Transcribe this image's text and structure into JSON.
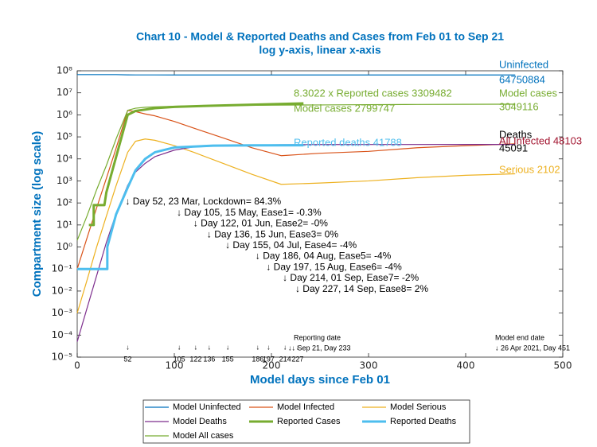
{
  "chart_data": {
    "type": "line",
    "title": "Chart 10 - Model & Reported Deaths and Cases from Feb 01 to Sep 21",
    "subtitle": "log y-axis, linear x-axis",
    "xlabel": "Model days since Feb 01",
    "ylabel": "Compartment size (log scale)",
    "xlim": [
      0,
      500
    ],
    "xticks": [
      0,
      100,
      200,
      300,
      400,
      500
    ],
    "ylim": [
      1e-05,
      100000000
    ],
    "log_y": true,
    "yticks": [
      {
        "value": 1e-05,
        "label": "10⁻⁵"
      },
      {
        "value": 0.0001,
        "label": "10⁻⁴"
      },
      {
        "value": 0.001,
        "label": "10⁻³"
      },
      {
        "value": 0.01,
        "label": "10⁻²"
      },
      {
        "value": 0.1,
        "label": "10⁻¹"
      },
      {
        "value": 1,
        "label": "10⁰"
      },
      {
        "value": 10,
        "label": "10¹"
      },
      {
        "value": 100,
        "label": "10²"
      },
      {
        "value": 1000,
        "label": "10³"
      },
      {
        "value": 10000,
        "label": "10⁴"
      },
      {
        "value": 100000,
        "label": "10⁵"
      },
      {
        "value": 1000000,
        "label": "10⁶"
      },
      {
        "value": 10000000,
        "label": "10⁷"
      },
      {
        "value": 100000000,
        "label": "10⁸"
      }
    ],
    "grid": false,
    "series": [
      {
        "name": "Model Uninfected",
        "color": "#0072BD",
        "width": 1.2,
        "x": [
          0,
          10,
          20,
          30,
          40,
          52,
          60,
          70,
          80,
          100,
          120,
          150,
          180,
          210,
          250,
          300,
          350,
          400,
          451
        ],
        "values": [
          67000000,
          67000000,
          67000000,
          67000000,
          66900000,
          65500000,
          64900000,
          64850000,
          64820000,
          64800000,
          64790000,
          64780000,
          64770000,
          64765000,
          64760000,
          64757000,
          64754000,
          64752000,
          64750884
        ]
      },
      {
        "name": "Model Infected",
        "color": "#D95319",
        "width": 1.2,
        "x": [
          0,
          10,
          20,
          30,
          40,
          52,
          60,
          70,
          80,
          100,
          120,
          150,
          180,
          210,
          250,
          300,
          350,
          400,
          451
        ],
        "values": [
          0.1,
          2.5,
          60,
          1300,
          30000,
          1600000,
          1400000,
          1100000,
          900000,
          500000,
          250000,
          90000,
          32000,
          14000,
          18000,
          22000,
          32000,
          40000,
          48103
        ]
      },
      {
        "name": "Model Serious",
        "color": "#EDB120",
        "width": 1.2,
        "x": [
          0,
          10,
          20,
          30,
          40,
          52,
          60,
          70,
          80,
          100,
          120,
          150,
          180,
          210,
          250,
          300,
          350,
          400,
          451
        ],
        "values": [
          0.001,
          0.03,
          1,
          25,
          600,
          20000,
          63000,
          80000,
          70000,
          40000,
          20000,
          6300,
          2000,
          700,
          800,
          1000,
          1400,
          1800,
          2102
        ]
      },
      {
        "name": "Model Deaths",
        "color": "#7E2F8E",
        "width": 1.2,
        "x": [
          0,
          10,
          20,
          30,
          40,
          52,
          60,
          70,
          80,
          100,
          120,
          150,
          180,
          210,
          250,
          300,
          350,
          400,
          451
        ],
        "values": [
          5e-05,
          0.0016,
          0.05,
          1.6,
          32,
          630,
          2500,
          6300,
          12600,
          25000,
          35000,
          40000,
          42500,
          44000,
          44800,
          45000,
          45050,
          45080,
          45091
        ]
      },
      {
        "name": "Reported Cases",
        "color": "#77AC30",
        "width": 3,
        "x": [
          12,
          17,
          17,
          28,
          30,
          40,
          52,
          60,
          80,
          100,
          140,
          180,
          220,
          233
        ],
        "values": [
          10,
          10,
          80,
          80,
          300,
          12000,
          1000000,
          1500000,
          2000000,
          2300000,
          2600000,
          2900000,
          3200000,
          3309482
        ]
      },
      {
        "name": "Reported Deaths",
        "color": "#4DBEEE",
        "width": 3,
        "x": [
          0,
          31,
          31,
          40,
          52,
          60,
          70,
          80,
          100,
          140,
          180,
          233
        ],
        "values": [
          0.1,
          0.1,
          1,
          30,
          500,
          3000,
          10000,
          20000,
          33000,
          40000,
          41000,
          41788
        ]
      },
      {
        "name": "Model All cases",
        "color": "#77AC30",
        "width": 1.2,
        "x": [
          0,
          10,
          20,
          30,
          40,
          52,
          60,
          70,
          80,
          100,
          120,
          150,
          180,
          210,
          250,
          300,
          350,
          400,
          451
        ],
        "values": [
          2,
          25,
          400,
          5000,
          80000,
          1600000,
          2000000,
          2200000,
          2300000,
          2450000,
          2550000,
          2650000,
          2720000,
          2780000,
          2820000,
          2900000,
          2960000,
          3010000,
          3049116
        ]
      }
    ],
    "annotations": [
      {
        "text": "Uninfected",
        "color": "#0072BD"
      },
      {
        "text": "64750884",
        "color": "#0072BD"
      },
      {
        "text": "8.3022 x Reported cases 3309482",
        "color": "#77AC30"
      },
      {
        "text": "Model cases 2799747",
        "color": "#77AC30"
      },
      {
        "text": "Model cases",
        "color": "#77AC30"
      },
      {
        "text": "3049116",
        "color": "#77AC30"
      },
      {
        "text": "Reported deaths 41788",
        "color": "#4DBEEE"
      },
      {
        "text": "Deaths",
        "color": "#000000"
      },
      {
        "text": "45091",
        "color": "#000000"
      },
      {
        "text": "All Infected 48103",
        "color": "#A2142F"
      },
      {
        "text": "Serious 2102",
        "color": "#EDB120"
      },
      {
        "text": "Reporting date",
        "color": "#000000"
      },
      {
        "text": "↓↓ Sep 21, Day 233",
        "color": "#000000"
      },
      {
        "text": "Model end date",
        "color": "#000000"
      },
      {
        "text": "↓ 26 Apr 2021, Day 451",
        "color": "#000000"
      }
    ],
    "markers": [
      {
        "day": 52,
        "label": "↓ Day 52, 23 Mar, Lockdown= 84.3%"
      },
      {
        "day": 105,
        "label": "↓ Day 105, 15 May, Ease1= -0.3%"
      },
      {
        "day": 122,
        "label": "↓ Day 122, 01 Jun, Ease2= -0%"
      },
      {
        "day": 136,
        "label": "↓ Day 136, 15 Jun, Ease3= 0%"
      },
      {
        "day": 155,
        "label": "↓ Day 155, 04 Jul, Ease4= -4%"
      },
      {
        "day": 186,
        "label": "↓ Day 186, 04 Aug, Ease5= -4%"
      },
      {
        "day": 197,
        "label": "↓ Day 197, 15 Aug, Ease6= -4%"
      },
      {
        "day": 214,
        "label": "↓ Day 214, 01 Sep, Ease7= -2%"
      },
      {
        "day": 227,
        "label": "↓ Day 227, 14 Sep, Ease8= 2%"
      }
    ]
  }
}
